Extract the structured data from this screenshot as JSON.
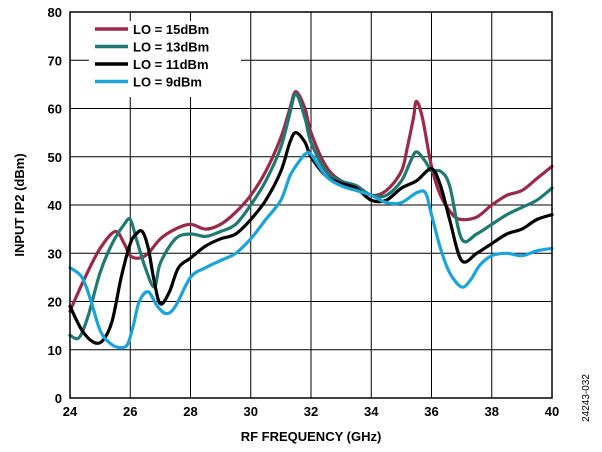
{
  "chart_data": {
    "type": "line",
    "title": "",
    "xlabel": "RF FREQUENCY (GHz)",
    "ylabel": "INPUT IP2 (dBm)",
    "xlim": [
      24,
      40
    ],
    "ylim": [
      0,
      80
    ],
    "x_ticks": [
      24,
      26,
      28,
      30,
      32,
      34,
      36,
      38,
      40
    ],
    "y_ticks": [
      0,
      10,
      20,
      30,
      40,
      50,
      60,
      70,
      80
    ],
    "grid": true,
    "legend_position": "top-left",
    "figure_id": "24243-032",
    "series": [
      {
        "name": "LO = 15dBm",
        "color": "#9b2948",
        "x": [
          24,
          24.5,
          25,
          25.5,
          25.8,
          26,
          26.3,
          26.6,
          27,
          27.5,
          28,
          28.5,
          29,
          29.5,
          30,
          30.5,
          31,
          31.3,
          31.5,
          31.8,
          32,
          32.5,
          33,
          33.5,
          34,
          34.5,
          35,
          35.2,
          35.4,
          35.5,
          35.7,
          36,
          36.3,
          36.7,
          37,
          37.5,
          38,
          38.5,
          39,
          39.5,
          40
        ],
        "y": [
          18,
          25,
          31,
          34.5,
          32,
          29.5,
          29,
          30,
          33,
          35,
          36,
          35,
          36,
          38.5,
          42,
          47,
          54,
          60,
          63.5,
          60,
          55,
          48,
          45,
          44,
          42,
          43,
          47,
          52,
          58,
          61.5,
          58,
          48,
          42,
          38,
          37,
          37.5,
          40,
          42,
          43,
          45.5,
          48
        ]
      },
      {
        "name": "LO = 13dBm",
        "color": "#1f7a73",
        "x": [
          24,
          24.3,
          24.6,
          25,
          25.4,
          25.8,
          26,
          26.2,
          26.5,
          26.8,
          27,
          27.5,
          28,
          28.5,
          29,
          29.5,
          30,
          30.5,
          31,
          31.3,
          31.5,
          31.8,
          32,
          32.5,
          33,
          33.5,
          34,
          34.5,
          35,
          35.3,
          35.5,
          35.8,
          36,
          36.3,
          36.6,
          37,
          37.5,
          38,
          38.5,
          39,
          39.5,
          40
        ],
        "y": [
          13,
          12.5,
          17,
          26,
          32,
          36,
          37,
          33,
          27,
          23,
          28,
          33,
          34,
          33.5,
          34.5,
          36,
          40,
          45,
          52,
          59,
          63,
          58,
          53,
          47,
          45,
          44,
          42,
          42,
          45,
          49,
          51,
          49,
          47,
          47,
          44,
          33,
          34,
          36,
          38,
          39.5,
          41,
          43.5
        ]
      },
      {
        "name": "LO = 11dBm",
        "color": "#000000",
        "x": [
          24,
          24.4,
          24.8,
          25.1,
          25.4,
          25.7,
          26,
          26.2,
          26.4,
          26.6,
          26.8,
          27,
          27.3,
          27.6,
          28,
          28.5,
          29,
          29.5,
          30,
          30.5,
          31,
          31.3,
          31.5,
          31.8,
          32,
          32.5,
          33,
          33.5,
          34,
          34.5,
          35,
          35.5,
          36,
          36.3,
          36.6,
          37,
          37.5,
          38,
          38.5,
          39,
          39.5,
          40
        ],
        "y": [
          19,
          14,
          11.5,
          12,
          16,
          25,
          32,
          34,
          34.5,
          31,
          24,
          19.5,
          22,
          27,
          29,
          31.5,
          33,
          34,
          37,
          41,
          47,
          53,
          55,
          53,
          50,
          46,
          44.5,
          43.5,
          41,
          41,
          43.5,
          45,
          47.5,
          44,
          37,
          28.5,
          30,
          32,
          34,
          35,
          37,
          38
        ]
      },
      {
        "name": "LO = 9dBm",
        "color": "#1aa3dc",
        "x": [
          24,
          24.4,
          24.7,
          25,
          25.3,
          25.6,
          25.9,
          26.1,
          26.3,
          26.6,
          26.9,
          27.2,
          27.5,
          28,
          28.5,
          29,
          29.5,
          30,
          30.5,
          31,
          31.3,
          31.6,
          31.8,
          32,
          32.5,
          33,
          33.5,
          34,
          34.5,
          35,
          35.5,
          35.8,
          36,
          36.3,
          36.6,
          37,
          37.3,
          37.6,
          38,
          38.5,
          39,
          39.5,
          40
        ],
        "y": [
          27,
          25,
          20,
          14,
          11.5,
          10.5,
          11,
          15,
          20,
          22,
          19,
          17.5,
          19,
          25,
          27,
          28.5,
          30,
          33,
          37,
          41,
          46,
          49,
          50.5,
          50.5,
          46,
          44,
          43,
          42,
          40.5,
          40.5,
          42.5,
          42.5,
          38,
          31,
          26,
          23,
          24.5,
          27.5,
          29.5,
          30,
          29.5,
          30.5,
          31
        ]
      }
    ]
  }
}
